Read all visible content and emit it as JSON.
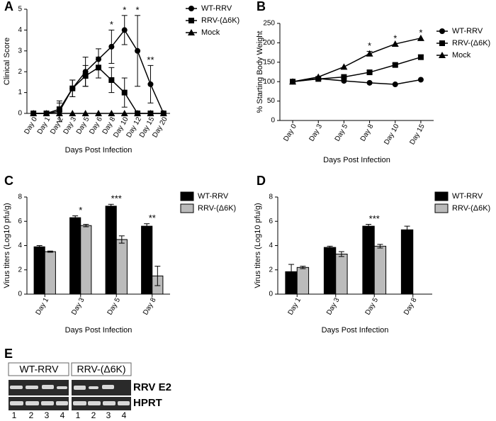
{
  "chart_data": [
    {
      "type": "line",
      "panel_label": "A",
      "y_label": "Clinical Score",
      "x_label": "Days Post Infection",
      "categories": [
        "Day 0",
        "Day 1",
        "Day 2",
        "Day 3",
        "Day 5",
        "Day 6",
        "Day 8",
        "Day 10",
        "Day 12",
        "Day 15",
        "Day 20"
      ],
      "ylim": [
        0,
        5
      ],
      "yticks": [
        0,
        1,
        2,
        3,
        4,
        5
      ],
      "grid": false,
      "legend": "right",
      "series": [
        {
          "name": "WT-RRV",
          "color": "#000000",
          "marker": "circle",
          "values": [
            0,
            0,
            0.1,
            1.2,
            2,
            2.6,
            3.2,
            4,
            3,
            1.4,
            0
          ],
          "errors": [
            null,
            null,
            0.5,
            0.4,
            0.7,
            0.5,
            0.8,
            0.7,
            1.7,
            0.9,
            null
          ]
        },
        {
          "name": "RRV-(Δ6K)",
          "color": "#000000",
          "marker": "square",
          "values": [
            0,
            0,
            0.2,
            1.2,
            1.8,
            2.2,
            1.6,
            1,
            0,
            0,
            0
          ],
          "errors": [
            null,
            null,
            0.3,
            0.4,
            0.5,
            0.5,
            0.6,
            0.7,
            null,
            null,
            null
          ]
        },
        {
          "name": "Mock",
          "color": "#000000",
          "marker": "triangle",
          "values": [
            0,
            0,
            0,
            0,
            0,
            0,
            0,
            0,
            0,
            0,
            0
          ]
        }
      ],
      "annotations": [
        {
          "category": "Day 8",
          "text": "*"
        },
        {
          "category": "Day 10",
          "text": "*"
        },
        {
          "category": "Day 12",
          "text": "*"
        },
        {
          "category": "Day 15",
          "text": "**"
        }
      ]
    },
    {
      "type": "line",
      "panel_label": "B",
      "y_label": "% Starting Body Weight",
      "x_label": "Days Post Infection",
      "categories": [
        "Day 0",
        "Day 3",
        "Day 5",
        "Day 8",
        "Day 10",
        "Day 15"
      ],
      "ylim": [
        0,
        250
      ],
      "yticks": [
        0,
        50,
        100,
        150,
        200,
        250
      ],
      "grid": false,
      "legend": "right",
      "series": [
        {
          "name": "WT-RRV",
          "color": "#000000",
          "marker": "circle",
          "values": [
            100,
            108,
            102,
            97,
            93,
            105
          ]
        },
        {
          "name": "RRV-(Δ6K)",
          "color": "#000000",
          "marker": "square",
          "values": [
            100,
            107,
            112,
            124,
            143,
            163
          ],
          "errors": [
            null,
            null,
            null,
            4,
            4,
            6
          ]
        },
        {
          "name": "Mock",
          "color": "#000000",
          "marker": "triangle",
          "values": [
            100,
            112,
            138,
            172,
            197,
            212
          ],
          "errors": [
            null,
            null,
            null,
            6,
            null,
            null
          ]
        }
      ],
      "annotations": [
        {
          "category": "Day 8",
          "text": "*"
        },
        {
          "category": "Day 10",
          "text": "*"
        },
        {
          "category": "Day 15",
          "text": "*"
        }
      ]
    },
    {
      "type": "bar",
      "panel_label": "C",
      "y_label": "Virus titers (Log10 pfu/g)",
      "x_label": "Days Post Infection",
      "categories": [
        "Day 1",
        "Day 3",
        "Day 5",
        "Day 8"
      ],
      "ylim": [
        0,
        8
      ],
      "yticks": [
        0,
        2,
        4,
        6,
        8
      ],
      "grid": false,
      "legend": "right",
      "series": [
        {
          "name": "WT-RRV",
          "color": "#000000",
          "values": [
            3.9,
            6.3,
            7.25,
            5.6
          ],
          "errors": [
            0.1,
            0.15,
            0.15,
            0.2
          ]
        },
        {
          "name": "RRV-(Δ6K)",
          "color": "#bbbbbb",
          "values": [
            3.5,
            5.65,
            4.5,
            1.5
          ],
          "errors": [
            0.05,
            0.1,
            0.3,
            0.8
          ]
        }
      ],
      "annotations": [
        {
          "category": "Day 3",
          "text": "*"
        },
        {
          "category": "Day 5",
          "text": "***"
        },
        {
          "category": "Day 8",
          "text": "**"
        }
      ]
    },
    {
      "type": "bar",
      "panel_label": "D",
      "y_label": "Virus titers (Log10 pfu/g)",
      "x_label": "Days Post Infection",
      "categories": [
        "Day 1",
        "Day 3",
        "Day 5",
        "Day 8"
      ],
      "ylim": [
        0,
        8
      ],
      "yticks": [
        0,
        2,
        4,
        6,
        8
      ],
      "grid": false,
      "legend": "right",
      "series": [
        {
          "name": "WT-RRV",
          "color": "#000000",
          "values": [
            1.85,
            3.85,
            5.6,
            5.3
          ],
          "errors": [
            0.6,
            0.1,
            0.15,
            0.3
          ]
        },
        {
          "name": "RRV-(Δ6K)",
          "color": "#bbbbbb",
          "values": [
            2.2,
            3.3,
            3.95,
            null
          ],
          "errors": [
            0.1,
            0.2,
            0.15,
            null
          ]
        }
      ],
      "annotations": [
        {
          "category": "Day 5",
          "text": "***"
        }
      ]
    }
  ],
  "gel": {
    "panel_label": "E",
    "groups": [
      "WT-RRV",
      "RRV-(Δ6K)"
    ],
    "rows": [
      "RRV E2",
      "HPRT"
    ],
    "lanes": [
      "1",
      "2",
      "3",
      "4"
    ]
  }
}
